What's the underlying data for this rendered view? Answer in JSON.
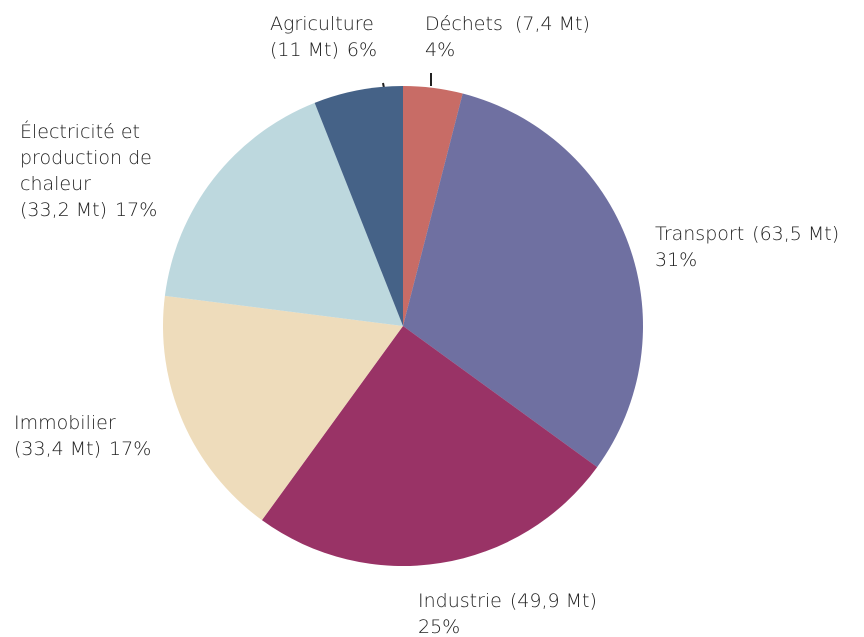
{
  "chart_data": {
    "type": "pie",
    "categories": [
      "Déchets",
      "Transport",
      "Industrie",
      "Immobilier",
      "Électricité et production de chaleur",
      "Agriculture"
    ],
    "amounts": [
      "(7,4 Mt)",
      "(63,5 Mt)",
      "(49,9 Mt)",
      "(33,4 Mt)",
      "(33,2 Mt)",
      "(11 Mt)"
    ],
    "values": [
      4,
      31,
      25,
      17,
      17,
      6
    ],
    "value_labels": [
      "4%",
      "31%",
      "25%",
      "17%",
      "17%",
      "6%"
    ],
    "colors": [
      "#c86c66",
      "#6f70a1",
      "#993366",
      "#eedcbb",
      "#bdd8de",
      "#456287"
    ]
  }
}
